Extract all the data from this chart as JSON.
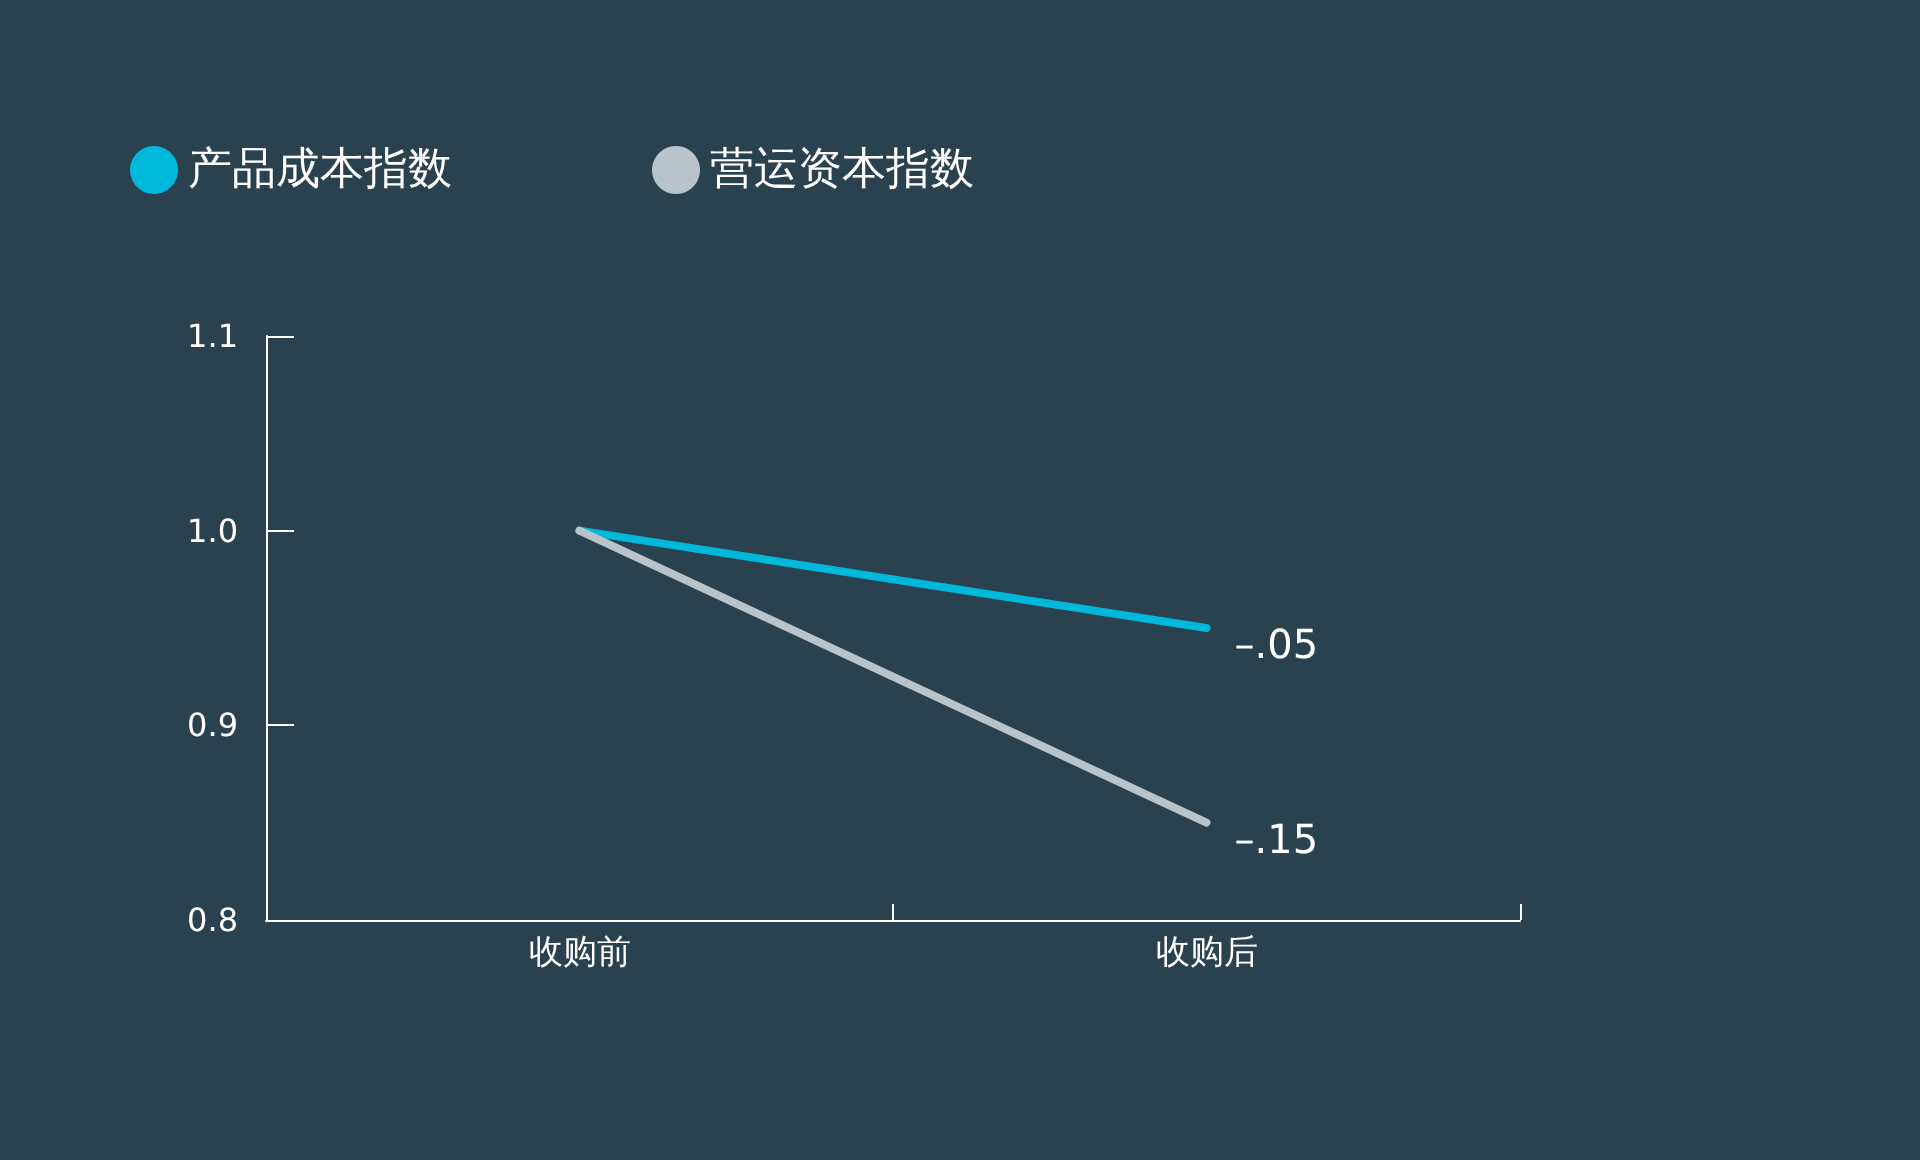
{
  "chart_data": {
    "type": "line",
    "categories": [
      "收购前",
      "收购后"
    ],
    "series": [
      {
        "name": "产品成本指数",
        "color": "#00b8d9",
        "values": [
          1.0,
          0.95
        ]
      },
      {
        "name": "营运资本指数",
        "color": "#b9c3ca",
        "values": [
          1.0,
          0.85
        ]
      }
    ],
    "ylim": [
      0.8,
      1.1
    ],
    "yticks": [
      0.8,
      0.9,
      {
        "value": 1.0,
        "label": "1.0"
      },
      1.1
    ],
    "annotations": [
      {
        "text": "–.05",
        "x": "收购后",
        "y": 0.95
      },
      {
        "text": "–.15",
        "x": "收购后",
        "y": 0.85
      }
    ],
    "legend": "top left",
    "grid": false,
    "marker": "none",
    "line_style": "solid"
  }
}
